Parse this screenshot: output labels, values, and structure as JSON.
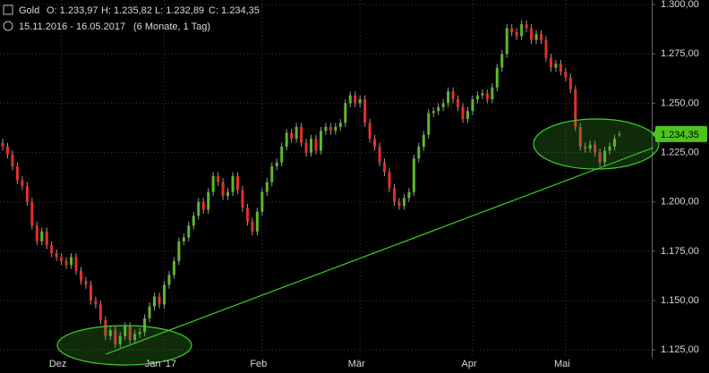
{
  "chart_data": {
    "type": "candlestick",
    "info": {
      "name": "Gold",
      "open": "O: 1.233,97",
      "high": "H: 1.235,82",
      "low": "L: 1.232,89",
      "close": "C: 1.234,35",
      "range": "15.11.2016 - 16.05.2017",
      "period": "(6 Monate, 1 Tag)"
    },
    "categories": [
      null,
      null,
      null,
      null,
      null,
      null,
      null,
      null,
      null,
      null,
      null,
      null,
      "Dez",
      null,
      null,
      null,
      null,
      null,
      null,
      null,
      null,
      null,
      null,
      null,
      null,
      null,
      null,
      null,
      null,
      null,
      null,
      null,
      null,
      "Jan '17",
      null,
      null,
      null,
      null,
      null,
      null,
      null,
      null,
      null,
      null,
      null,
      null,
      null,
      null,
      null,
      null,
      null,
      null,
      null,
      "Feb",
      null,
      null,
      null,
      null,
      null,
      null,
      null,
      null,
      null,
      null,
      null,
      null,
      null,
      null,
      null,
      null,
      null,
      null,
      null,
      "Mär",
      null,
      null,
      null,
      null,
      null,
      null,
      null,
      null,
      null,
      null,
      null,
      null,
      null,
      null,
      null,
      null,
      null,
      null,
      null,
      null,
      null,
      null,
      "Apr",
      null,
      null,
      null,
      null,
      null,
      null,
      null,
      null,
      null,
      null,
      null,
      null,
      null,
      null,
      null,
      null,
      null,
      null,
      "Mai",
      null,
      null,
      null,
      null,
      null,
      null,
      null,
      null,
      null,
      null,
      null
    ],
    "open": [
      1230,
      1228,
      1224,
      1218,
      1211,
      1208,
      1200,
      1188,
      1180,
      1185,
      1178,
      1174,
      1172,
      1170,
      1168,
      1172,
      1165,
      1160,
      1158,
      1150,
      1148,
      1140,
      1132,
      1135,
      1128,
      1132,
      1137,
      1130,
      1133,
      1134,
      1141,
      1147,
      1152,
      1148,
      1158,
      1163,
      1170,
      1180,
      1182,
      1188,
      1193,
      1200,
      1196,
      1205,
      1213,
      1210,
      1203,
      1205,
      1213,
      1206,
      1197,
      1190,
      1185,
      1195,
      1205,
      1210,
      1218,
      1220,
      1228,
      1235,
      1232,
      1238,
      1230,
      1225,
      1232,
      1226,
      1236,
      1238,
      1236,
      1238,
      1240,
      1250,
      1254,
      1250,
      1252,
      1240,
      1232,
      1228,
      1220,
      1215,
      1207,
      1200,
      1198,
      1202,
      1205,
      1222,
      1228,
      1234,
      1245,
      1246,
      1248,
      1250,
      1256,
      1252,
      1248,
      1242,
      1246,
      1252,
      1254,
      1255,
      1252,
      1258,
      1268,
      1275,
      1288,
      1286,
      1284,
      1290,
      1288,
      1282,
      1285,
      1282,
      1273,
      1268,
      1270,
      1266,
      1263,
      1257,
      1238,
      1228,
      1227,
      1229,
      1225,
      1220,
      1226,
      1228,
      1233.97
    ],
    "high": [
      1232,
      1230,
      1226,
      1220,
      1213,
      1210,
      1202,
      1190,
      1187,
      1187,
      1180,
      1176,
      1174,
      1172,
      1174,
      1174,
      1167,
      1162,
      1160,
      1152,
      1150,
      1142,
      1137,
      1137,
      1134,
      1139,
      1139,
      1135,
      1136,
      1143,
      1149,
      1154,
      1154,
      1160,
      1165,
      1172,
      1182,
      1184,
      1190,
      1195,
      1202,
      1202,
      1207,
      1215,
      1215,
      1212,
      1207,
      1215,
      1215,
      1208,
      1199,
      1192,
      1197,
      1207,
      1212,
      1220,
      1222,
      1230,
      1237,
      1237,
      1240,
      1240,
      1232,
      1234,
      1234,
      1238,
      1240,
      1240,
      1240,
      1242,
      1252,
      1256,
      1256,
      1254,
      1254,
      1242,
      1234,
      1230,
      1222,
      1217,
      1209,
      1202,
      1204,
      1207,
      1224,
      1230,
      1236,
      1247,
      1248,
      1250,
      1252,
      1258,
      1258,
      1254,
      1250,
      1248,
      1254,
      1256,
      1257,
      1257,
      1260,
      1270,
      1277,
      1290,
      1290,
      1288,
      1292,
      1292,
      1290,
      1287,
      1287,
      1284,
      1275,
      1272,
      1272,
      1268,
      1265,
      1259,
      1240,
      1230,
      1231,
      1231,
      1227,
      1228,
      1230,
      1234,
      1235.82
    ],
    "low": [
      1226,
      1222,
      1216,
      1209,
      1206,
      1198,
      1186,
      1178,
      1178,
      1176,
      1172,
      1170,
      1168,
      1166,
      1166,
      1163,
      1158,
      1156,
      1148,
      1146,
      1138,
      1130,
      1130,
      1126,
      1126,
      1130,
      1128,
      1128,
      1131,
      1132,
      1139,
      1145,
      1146,
      1146,
      1156,
      1161,
      1168,
      1178,
      1180,
      1186,
      1191,
      1194,
      1194,
      1203,
      1208,
      1201,
      1201,
      1203,
      1204,
      1195,
      1188,
      1183,
      1183,
      1193,
      1203,
      1208,
      1216,
      1218,
      1226,
      1230,
      1230,
      1228,
      1223,
      1223,
      1224,
      1224,
      1234,
      1234,
      1234,
      1236,
      1238,
      1248,
      1248,
      1248,
      1238,
      1230,
      1226,
      1218,
      1213,
      1205,
      1198,
      1196,
      1196,
      1200,
      1203,
      1220,
      1226,
      1232,
      1243,
      1244,
      1246,
      1248,
      1250,
      1246,
      1240,
      1240,
      1244,
      1250,
      1252,
      1250,
      1250,
      1256,
      1266,
      1273,
      1284,
      1282,
      1282,
      1286,
      1280,
      1280,
      1280,
      1271,
      1266,
      1266,
      1264,
      1261,
      1255,
      1236,
      1226,
      1225,
      1225,
      1223,
      1218,
      1218,
      1224,
      1226,
      1232.89
    ],
    "close": [
      1228,
      1224,
      1218,
      1211,
      1208,
      1200,
      1188,
      1180,
      1185,
      1178,
      1174,
      1172,
      1170,
      1168,
      1172,
      1165,
      1160,
      1158,
      1150,
      1148,
      1140,
      1132,
      1135,
      1128,
      1132,
      1137,
      1130,
      1133,
      1134,
      1141,
      1147,
      1152,
      1148,
      1158,
      1163,
      1170,
      1180,
      1182,
      1188,
      1193,
      1200,
      1196,
      1205,
      1213,
      1210,
      1203,
      1205,
      1213,
      1206,
      1197,
      1190,
      1185,
      1195,
      1205,
      1210,
      1218,
      1220,
      1228,
      1235,
      1232,
      1238,
      1230,
      1225,
      1232,
      1226,
      1236,
      1238,
      1236,
      1238,
      1240,
      1250,
      1254,
      1250,
      1252,
      1240,
      1232,
      1228,
      1220,
      1215,
      1207,
      1200,
      1198,
      1202,
      1205,
      1222,
      1228,
      1234,
      1245,
      1246,
      1248,
      1250,
      1256,
      1252,
      1248,
      1242,
      1246,
      1252,
      1254,
      1255,
      1252,
      1258,
      1268,
      1275,
      1288,
      1286,
      1284,
      1290,
      1288,
      1282,
      1285,
      1282,
      1273,
      1268,
      1270,
      1266,
      1263,
      1257,
      1238,
      1228,
      1227,
      1229,
      1225,
      1220,
      1226,
      1228,
      1232,
      1234.35
    ],
    "up_color": "#5bb82b",
    "down_color": "#e2302b",
    "ylim": [
      1121,
      1302.3
    ],
    "yticks": [
      {
        "value": 1125,
        "label": "1.125,00"
      },
      {
        "value": 1150,
        "label": "1.150,00"
      },
      {
        "value": 1175,
        "label": "1.175,00"
      },
      {
        "value": 1200,
        "label": "1.200,00"
      },
      {
        "value": 1225,
        "label": "1.225,00"
      },
      {
        "value": 1250,
        "label": "1.250,00"
      },
      {
        "value": 1275,
        "label": "1.275,00"
      },
      {
        "value": 1300,
        "label": "1.300,00"
      }
    ],
    "last_price": {
      "value": 1234.35,
      "label": "1.234,35"
    },
    "grid": true
  }
}
